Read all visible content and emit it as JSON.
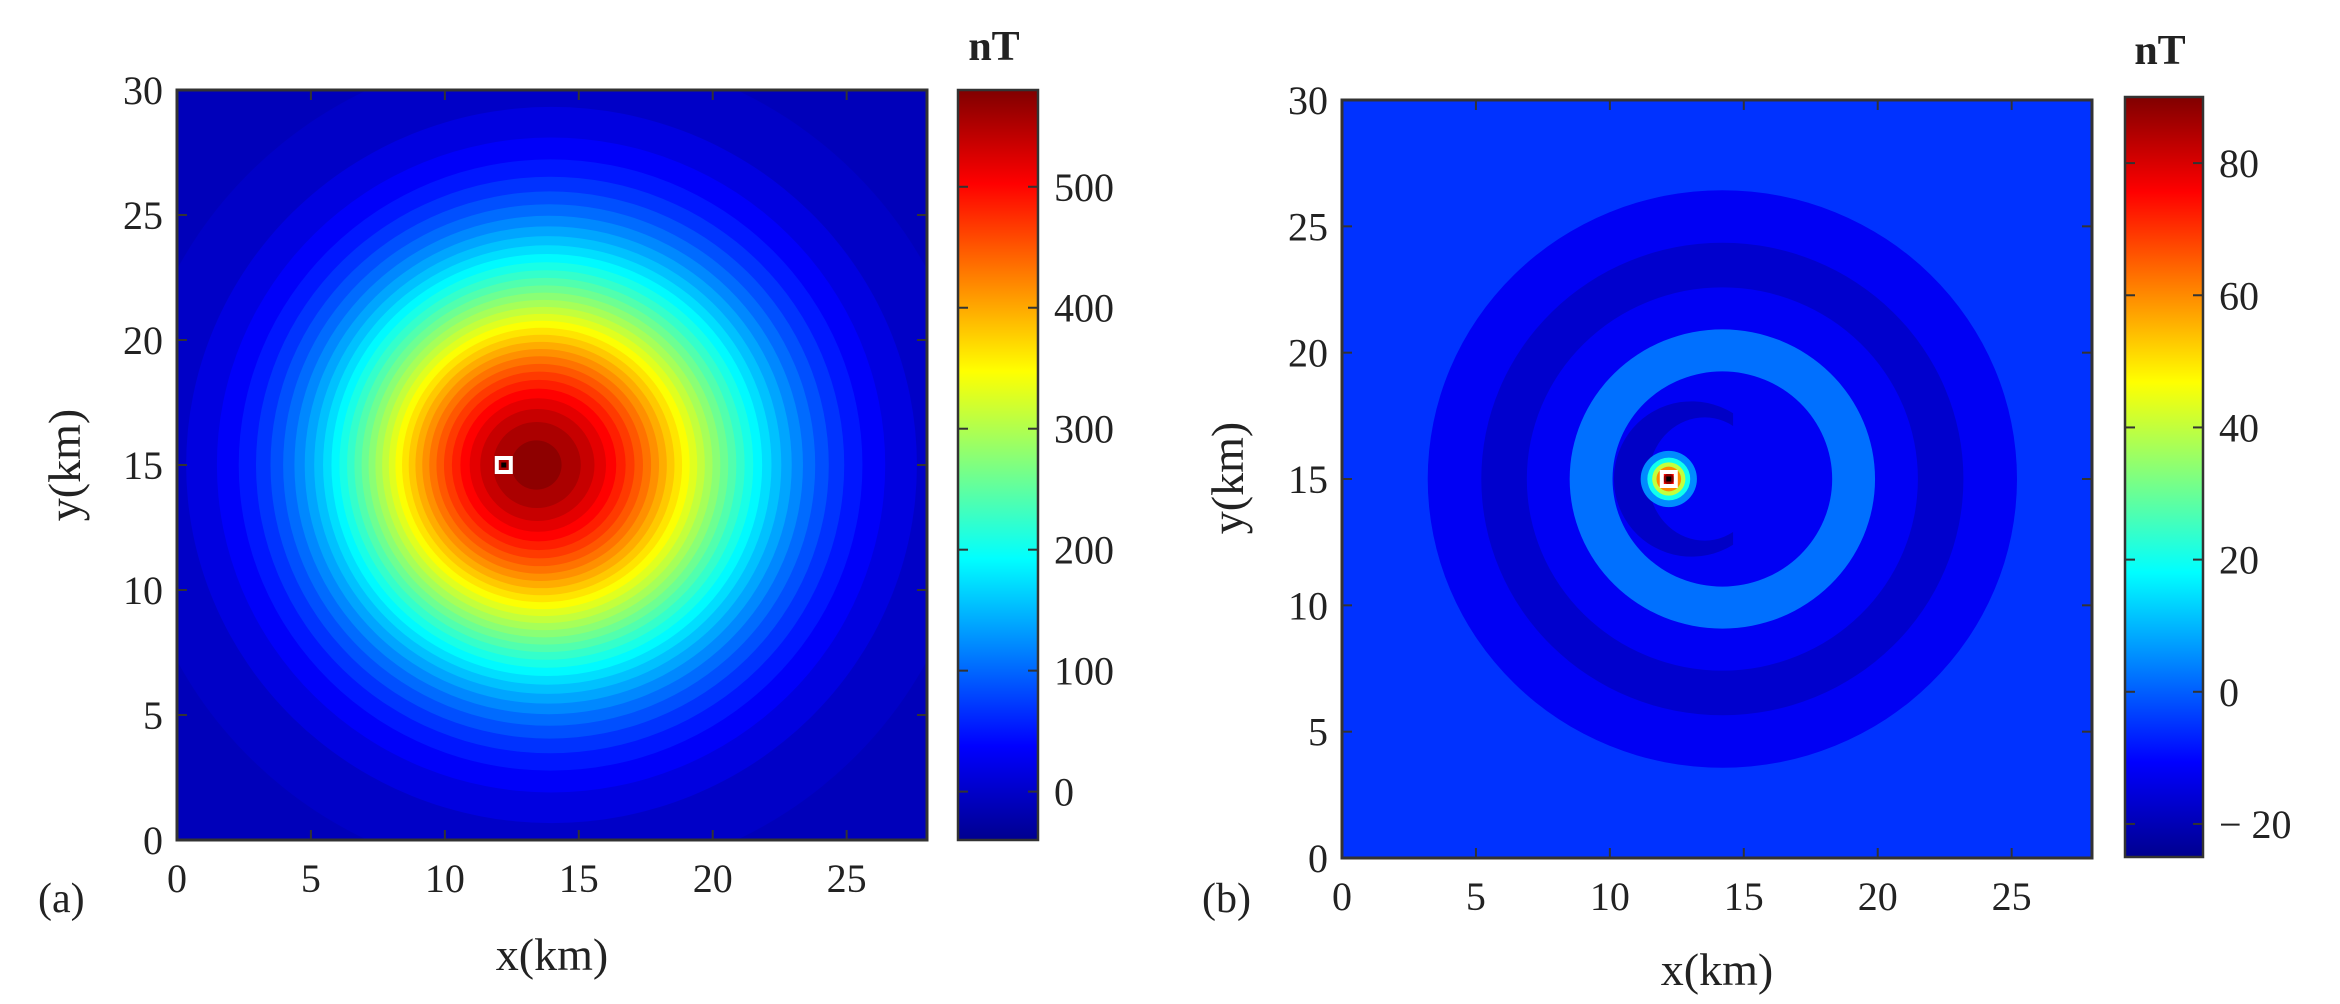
{
  "chart_data": [
    {
      "panel_label": "(a)",
      "type": "heatmap",
      "xlabel": "x(km)",
      "ylabel": "y(km)",
      "xlim": [
        0,
        28
      ],
      "ylim": [
        0,
        30
      ],
      "xticks": [
        "0",
        "5",
        "10",
        "15",
        "20",
        "25"
      ],
      "yticks": [
        "0",
        "5",
        "10",
        "15",
        "20",
        "25",
        "30"
      ],
      "colorbar": {
        "label": "nT",
        "range": [
          -40,
          580
        ],
        "ticks": [
          "0",
          "100",
          "200",
          "300",
          "400",
          "500"
        ],
        "colormap": "jet"
      },
      "field": {
        "shape": "gaussian",
        "peak": 580,
        "background": -10,
        "center_x": 14,
        "center_y": 15,
        "sigma_km": 5.2
      },
      "marker": {
        "x": 12.2,
        "y": 15.0,
        "color": "#ffffff"
      }
    },
    {
      "panel_label": "(b)",
      "type": "heatmap",
      "xlabel": "x(km)",
      "ylabel": "y(km)",
      "xlim": [
        0,
        28
      ],
      "ylim": [
        0,
        30
      ],
      "xticks": [
        "0",
        "5",
        "10",
        "15",
        "20",
        "25"
      ],
      "yticks": [
        "0",
        "5",
        "10",
        "15",
        "20",
        "25",
        "30"
      ],
      "colorbar": {
        "label": "nT",
        "range": [
          -25,
          90
        ],
        "ticks": [
          "− 20",
          "0",
          "20",
          "40",
          "60",
          "80"
        ],
        "colormap": "jet"
      },
      "field": {
        "background": -5,
        "outer_ring_value": -12,
        "middle_ring_value": -17,
        "inner_ring_value": 2,
        "crescent_value": -18,
        "spot_peak": 90,
        "ring_center_x": 14.2,
        "ring_center_y": 15
      },
      "marker": {
        "x": 12.2,
        "y": 15.0,
        "color": "#ffffff"
      }
    }
  ],
  "colors": {
    "jet_dark_blue": "#00008f",
    "jet_dark_red": "#800000",
    "marker_outline": "#000000"
  }
}
